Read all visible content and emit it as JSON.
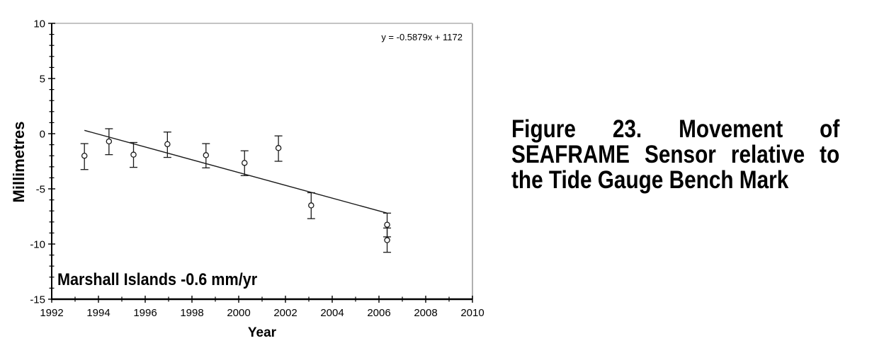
{
  "page": {
    "background": "#ffffff"
  },
  "chart_data": {
    "type": "scatter",
    "title": "",
    "xlabel": "Year",
    "ylabel": "Millimetres",
    "equation": "y = -0.5879x + 1172",
    "annotation": "Marshall Islands -0.6 mm/yr",
    "xlim": [
      1992,
      2010
    ],
    "ylim": [
      -15,
      10
    ],
    "x_major_ticks": [
      1992,
      1994,
      1996,
      1998,
      2000,
      2002,
      2004,
      2006,
      2008,
      2010
    ],
    "x_tick_labels": [
      "1992",
      "1994",
      "1996",
      "1998",
      "2000",
      "2002",
      "2004",
      "2006",
      "2008",
      "2010"
    ],
    "x_minor_step": 1,
    "y_major_ticks": [
      10,
      5,
      0,
      -5,
      -10,
      -15
    ],
    "y_tick_labels": [
      "10",
      "5",
      "0",
      "-5",
      "-10",
      "-15"
    ],
    "y_minor_step": 1,
    "grid": false,
    "legend": false,
    "marker": "open-circle",
    "trendline": {
      "x1": 1993.4,
      "y1": 0.3,
      "x2": 2006.35,
      "y2": -7.2
    },
    "points": [
      {
        "year": 1993.4,
        "value": -2.0,
        "err_up": 1.1,
        "err_down": 1.25
      },
      {
        "year": 1994.45,
        "value": -0.7,
        "err_up": 1.15,
        "err_down": 1.2
      },
      {
        "year": 1995.5,
        "value": -1.9,
        "err_up": 1.1,
        "err_down": 1.15
      },
      {
        "year": 1996.95,
        "value": -0.95,
        "err_up": 1.1,
        "err_down": 1.2
      },
      {
        "year": 1998.6,
        "value": -1.95,
        "err_up": 1.05,
        "err_down": 1.15
      },
      {
        "year": 2000.25,
        "value": -2.65,
        "err_up": 1.1,
        "err_down": 1.15
      },
      {
        "year": 2001.7,
        "value": -1.3,
        "err_up": 1.1,
        "err_down": 1.2
      },
      {
        "year": 2003.1,
        "value": -6.5,
        "err_up": 1.15,
        "err_down": 1.2
      },
      {
        "year": 2006.35,
        "value": -8.25,
        "err_up": 1.05,
        "err_down": 1.1
      },
      {
        "year": 2006.35,
        "value": -9.65,
        "err_up": 1.1,
        "err_down": 1.1
      }
    ]
  },
  "caption": {
    "lines": [
      "Figure 23. Movement of",
      "SEAFRAME Sensor relative to",
      "the Tide Gauge Bench Mark"
    ]
  },
  "colors": {
    "axis": "#000000",
    "frame": "#b0b0b0",
    "trend": "#1a1a1a",
    "error_bar": "#1a1a1a",
    "marker_stroke": "#1a1a1a",
    "marker_fill": "#ffffff",
    "text": "#000000"
  }
}
